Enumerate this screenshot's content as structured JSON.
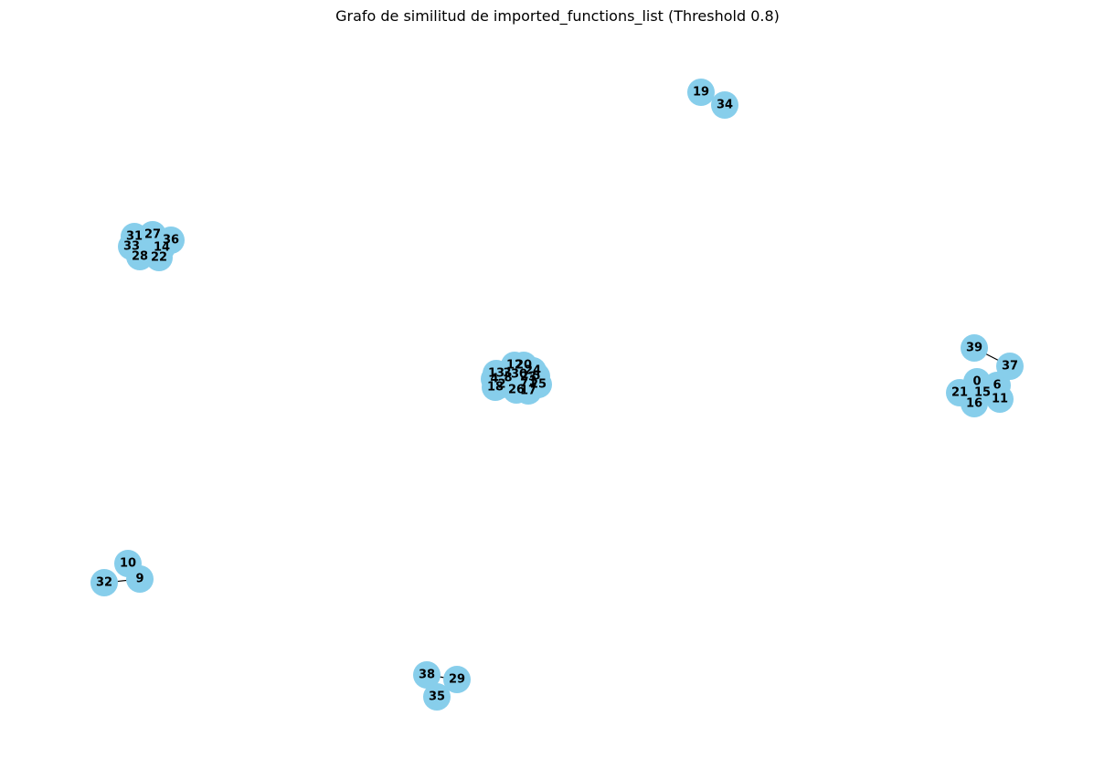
{
  "title": "Grafo de similitud de imported_functions_list (Threshold 0.8)",
  "colors": {
    "node": "#87ceeb",
    "edge": "#000000",
    "label": "#000000",
    "background": "#ffffff"
  },
  "graph": {
    "nodes": [
      "0",
      "1",
      "2",
      "3",
      "4",
      "5",
      "6",
      "7",
      "8",
      "9",
      "10",
      "11",
      "12",
      "13",
      "14",
      "15",
      "16",
      "17",
      "18",
      "19",
      "20",
      "21",
      "22",
      "23",
      "24",
      "25",
      "26",
      "27",
      "28",
      "29",
      "30",
      "31",
      "32",
      "33",
      "34",
      "35",
      "36",
      "37",
      "38",
      "39"
    ],
    "edges": [
      [
        "19",
        "34"
      ],
      [
        "39",
        "37"
      ],
      [
        "37",
        "6"
      ],
      [
        "10",
        "9"
      ],
      [
        "32",
        "9"
      ],
      [
        "38",
        "29"
      ],
      [
        "38",
        "35"
      ],
      [
        "29",
        "35"
      ]
    ]
  }
}
